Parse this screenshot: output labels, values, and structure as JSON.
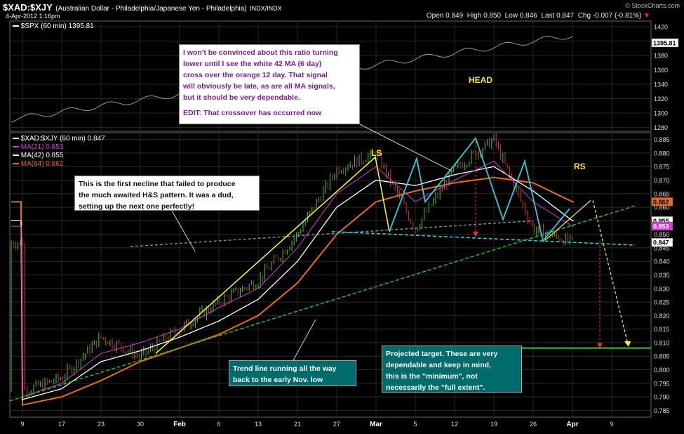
{
  "header": {
    "symbol": "$XAD:$XJY",
    "description": "(Australian Dollar - Philadelphia/Japanese Yen - Philadelphia)",
    "exchange": "INDX/INDX",
    "date": "4-Apr-2012 1:16pm",
    "quote": {
      "open_label": "Open",
      "open": "0.849",
      "high_label": "High",
      "high": "0.850",
      "low_label": "Low",
      "low": "0.846",
      "last_label": "Last",
      "last": "0.847",
      "chg_label": "Chg",
      "chg": "-0.007 (-0.81%)"
    },
    "watermark": "© StockCharts.com"
  },
  "spx": {
    "legend": "$SPX (60 min) 1395.81",
    "price_tag": "1395.81",
    "ticks": [
      "1420",
      "1400",
      "1380",
      "1360",
      "1340",
      "1320",
      "1300",
      "1280"
    ]
  },
  "main": {
    "legend_title": "$XAD:$XJY (60 min) 0.847",
    "ma21_label": "MA(21) 0.853",
    "ma42_label": "MA(42) 0.855",
    "ma84_label": "MA(84) 0.862",
    "price_tags": {
      "ma84": "0.862",
      "ma42": "0.855",
      "ma21": "0.853",
      "last": "0.847"
    },
    "y_ticks": [
      "0.885",
      "0.880",
      "0.875",
      "0.870",
      "0.865",
      "0.860",
      "0.855",
      "0.850",
      "0.845",
      "0.840",
      "0.835",
      "0.830",
      "0.825",
      "0.820",
      "0.815",
      "0.810",
      "0.805",
      "0.800",
      "0.795",
      "0.790",
      "0.785"
    ],
    "x_ticks": [
      "9",
      "17",
      "23",
      "30",
      "Feb",
      "6",
      "13",
      "21",
      "27",
      "Mar",
      "5",
      "12",
      "19",
      "26",
      "Apr",
      "9"
    ]
  },
  "labels": {
    "head": "HEAD",
    "ls": "LS",
    "rs": "RS"
  },
  "annotations": {
    "ma_note": [
      "I won't be convinced about this ratio turning",
      "lower until I see the white 42 MA (6 day)",
      "cross over the orange 12 day.  That signal",
      "will obviously be late, as are all MA signals,",
      "but it should be very dependable.",
      "",
      "EDIT: That crossover has occurred now"
    ],
    "neckline_note": [
      "This is the first necline that failed to produce",
      "the much awaited H&S pattern.  It was a dud,",
      "setting up the next one perfectly!"
    ],
    "trend_note": [
      "Trend line running all the way",
      "back to the early Nov. low"
    ],
    "target_note": [
      "Projected target.  These are very",
      "dependable and keep in mind,",
      "this is the \"minimum\", not",
      "necessarily the \"full extent\"."
    ]
  },
  "colors": {
    "background": "#000000",
    "ma21": "#d03fd0",
    "ma42": "#ffffff",
    "ma84": "#e86a1e",
    "up": "#39d039",
    "down": "#e03030",
    "trend": "#22bb22",
    "neckline": "#33ccdd",
    "yellow": "#ffff33",
    "target": "#33cc33"
  },
  "chart_data": {
    "type": "line",
    "title": "$XAD:$XJY (60 min)",
    "series": [
      {
        "name": "$XAD:$XJY",
        "x": [
          "9",
          "17",
          "23",
          "30",
          "Feb",
          "6",
          "13",
          "21",
          "27",
          "Mar",
          "5",
          "12",
          "19",
          "26",
          "Apr"
        ],
        "values": [
          0.792,
          0.797,
          0.812,
          0.805,
          0.815,
          0.825,
          0.833,
          0.85,
          0.874,
          0.88,
          0.852,
          0.874,
          0.885,
          0.852,
          0.847
        ]
      },
      {
        "name": "MA(21)",
        "values": [
          0.79,
          0.795,
          0.806,
          0.81,
          0.815,
          0.823,
          0.83,
          0.845,
          0.865,
          0.875,
          0.862,
          0.87,
          0.877,
          0.862,
          0.853
        ]
      },
      {
        "name": "MA(42)",
        "values": [
          0.789,
          0.793,
          0.803,
          0.807,
          0.812,
          0.818,
          0.826,
          0.84,
          0.86,
          0.87,
          0.868,
          0.872,
          0.875,
          0.866,
          0.855
        ]
      },
      {
        "name": "MA(84)",
        "values": [
          0.787,
          0.79,
          0.796,
          0.803,
          0.808,
          0.813,
          0.82,
          0.832,
          0.85,
          0.862,
          0.866,
          0.869,
          0.871,
          0.869,
          0.862
        ]
      }
    ],
    "ylim": [
      0.7825,
      0.8875
    ],
    "projected_target": 0.808,
    "spx_last": 1395.81
  }
}
